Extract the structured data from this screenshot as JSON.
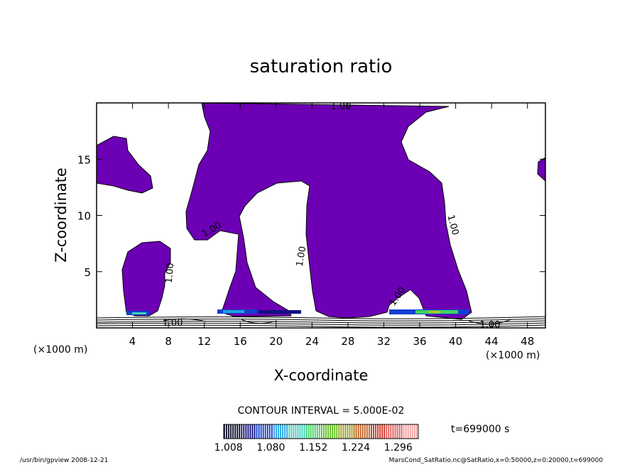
{
  "chart_data": {
    "type": "contour",
    "title": "saturation ratio",
    "xlabel": "X-coordinate",
    "ylabel": "Z-coordinate",
    "x_unit": "(×1000 m)",
    "x_unit_right": "(×1000 m)",
    "xlim": [
      0,
      50
    ],
    "ylim": [
      0,
      20
    ],
    "x_ticks": [
      4,
      8,
      12,
      16,
      20,
      24,
      28,
      32,
      36,
      40,
      44,
      48
    ],
    "y_ticks": [
      5,
      10,
      15
    ],
    "contour_level_label": "1.00",
    "contour_interval": "CONTOUR INTERVAL = 5.000E-02",
    "time_label": "t=699000 s",
    "colorbar": {
      "range": [
        1.0,
        1.33
      ],
      "tick_labels": [
        "1.008",
        "1.080",
        "1.152",
        "1.224",
        "1.296"
      ],
      "colors": [
        "#0a0a2a",
        "#101080",
        "#1040d0",
        "#20a0e0",
        "#40d0c0",
        "#40d060",
        "#60c020",
        "#a0a020",
        "#c06020",
        "#d03020",
        "#e06060",
        "#f0a0a0"
      ]
    },
    "fill_color": "#6c00b4",
    "footer_left": "/usr/bin/gpview  2008-12-21",
    "footer_right": "MarsCond_SatRatio.nc@SatRatio,x=0:50000,z=0:20000,t=699000"
  }
}
